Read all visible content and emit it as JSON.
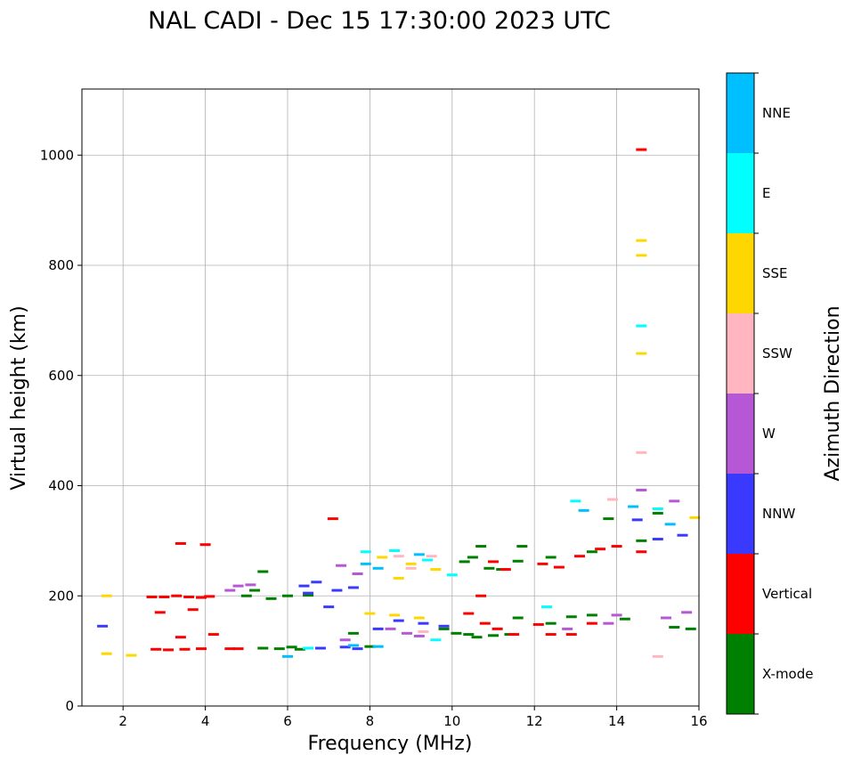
{
  "chart_data": {
    "type": "scatter",
    "title": "NAL CADI - Dec 15 17:30:00 2023 UTC",
    "xlabel": "Frequency (MHz)",
    "ylabel": "Virtual height (km)",
    "xlim": [
      1,
      16
    ],
    "ylim": [
      0,
      1120
    ],
    "xticks": [
      2,
      4,
      6,
      8,
      10,
      12,
      14,
      16
    ],
    "yticks": [
      0,
      200,
      400,
      600,
      800,
      1000
    ],
    "grid": true,
    "colorbar": {
      "label": "Azimuth Direction",
      "categories": [
        {
          "name": "X-mode",
          "color": "#008000"
        },
        {
          "name": "Vertical",
          "color": "#ff0000"
        },
        {
          "name": "NNW",
          "color": "#3a3aff"
        },
        {
          "name": "W",
          "color": "#b657d6"
        },
        {
          "name": "SSW",
          "color": "#ffb6c1"
        },
        {
          "name": "SSE",
          "color": "#ffd700"
        },
        {
          "name": "E",
          "color": "#00ffff"
        },
        {
          "name": "NNE",
          "color": "#00bfff"
        }
      ]
    },
    "series": [
      {
        "name": "X-mode",
        "points": [
          [
            5.4,
            105
          ],
          [
            5.8,
            104
          ],
          [
            6.1,
            107
          ],
          [
            6.3,
            103
          ],
          [
            7.6,
            132
          ],
          [
            8.0,
            108
          ],
          [
            9.8,
            140
          ],
          [
            10.1,
            132
          ],
          [
            10.4,
            130
          ],
          [
            10.6,
            125
          ],
          [
            11.0,
            128
          ],
          [
            11.4,
            130
          ],
          [
            11.6,
            160
          ],
          [
            12.4,
            150
          ],
          [
            12.9,
            162
          ],
          [
            13.4,
            165
          ],
          [
            14.2,
            158
          ],
          [
            15.4,
            143
          ],
          [
            15.8,
            140
          ],
          [
            10.3,
            262
          ],
          [
            10.5,
            270
          ],
          [
            10.9,
            250
          ],
          [
            11.2,
            248
          ],
          [
            11.6,
            263
          ],
          [
            12.4,
            270
          ],
          [
            13.4,
            280
          ],
          [
            14.6,
            300
          ],
          [
            5.0,
            200
          ],
          [
            5.6,
            195
          ],
          [
            6.0,
            200
          ],
          [
            6.5,
            201
          ],
          [
            5.4,
            244
          ],
          [
            5.2,
            210
          ],
          [
            11.7,
            290
          ],
          [
            15.0,
            350
          ],
          [
            13.8,
            340
          ],
          [
            10.7,
            290
          ]
        ]
      },
      {
        "name": "Vertical",
        "points": [
          [
            2.7,
            198
          ],
          [
            3.0,
            198
          ],
          [
            3.3,
            200
          ],
          [
            3.6,
            198
          ],
          [
            3.9,
            197
          ],
          [
            4.1,
            199
          ],
          [
            2.8,
            103
          ],
          [
            3.1,
            102
          ],
          [
            3.5,
            103
          ],
          [
            3.9,
            104
          ],
          [
            4.6,
            104
          ],
          [
            3.4,
            295
          ],
          [
            4.0,
            293
          ],
          [
            4.8,
            104
          ],
          [
            7.1,
            340
          ],
          [
            10.4,
            168
          ],
          [
            10.8,
            150
          ],
          [
            11.1,
            140
          ],
          [
            11.5,
            130
          ],
          [
            12.1,
            148
          ],
          [
            12.4,
            130
          ],
          [
            12.9,
            130
          ],
          [
            13.4,
            150
          ],
          [
            11.0,
            262
          ],
          [
            11.3,
            248
          ],
          [
            12.2,
            258
          ],
          [
            12.6,
            252
          ],
          [
            13.1,
            272
          ],
          [
            13.6,
            285
          ],
          [
            14.0,
            290
          ],
          [
            14.6,
            280
          ],
          [
            14.6,
            1010
          ],
          [
            10.7,
            200
          ],
          [
            2.9,
            170
          ],
          [
            3.7,
            175
          ],
          [
            3.4,
            125
          ],
          [
            4.2,
            130
          ]
        ]
      },
      {
        "name": "NNW",
        "points": [
          [
            1.5,
            145
          ],
          [
            6.4,
            218
          ],
          [
            6.7,
            225
          ],
          [
            7.2,
            210
          ],
          [
            7.4,
            107
          ],
          [
            6.8,
            105
          ],
          [
            7.7,
            104
          ],
          [
            8.2,
            140
          ],
          [
            8.7,
            155
          ],
          [
            9.3,
            150
          ],
          [
            9.8,
            145
          ],
          [
            15.0,
            303
          ],
          [
            15.6,
            310
          ],
          [
            6.5,
            205
          ],
          [
            7.0,
            180
          ],
          [
            14.5,
            338
          ],
          [
            7.6,
            215
          ]
        ]
      },
      {
        "name": "W",
        "points": [
          [
            4.6,
            210
          ],
          [
            4.8,
            218
          ],
          [
            5.1,
            220
          ],
          [
            7.3,
            255
          ],
          [
            7.7,
            240
          ],
          [
            8.5,
            140
          ],
          [
            8.9,
            132
          ],
          [
            9.2,
            127
          ],
          [
            14.6,
            392
          ],
          [
            15.2,
            160
          ],
          [
            15.7,
            170
          ],
          [
            15.4,
            372
          ],
          [
            12.8,
            140
          ],
          [
            13.8,
            150
          ],
          [
            14.0,
            165
          ],
          [
            7.4,
            120
          ]
        ]
      },
      {
        "name": "SSW",
        "points": [
          [
            8.7,
            272
          ],
          [
            9.0,
            250
          ],
          [
            9.5,
            272
          ],
          [
            13.9,
            375
          ],
          [
            14.6,
            460
          ],
          [
            15.0,
            90
          ],
          [
            9.3,
            135
          ]
        ]
      },
      {
        "name": "SSE",
        "points": [
          [
            8.3,
            270
          ],
          [
            8.7,
            232
          ],
          [
            9.0,
            258
          ],
          [
            9.6,
            248
          ],
          [
            8.0,
            168
          ],
          [
            8.6,
            165
          ],
          [
            14.6,
            845
          ],
          [
            14.6,
            818
          ],
          [
            14.6,
            640
          ],
          [
            1.6,
            200
          ],
          [
            1.6,
            95
          ],
          [
            15.9,
            342
          ],
          [
            9.2,
            160
          ],
          [
            2.2,
            92
          ]
        ]
      },
      {
        "name": "E",
        "points": [
          [
            7.9,
            280
          ],
          [
            8.6,
            282
          ],
          [
            9.4,
            265
          ],
          [
            9.6,
            120
          ],
          [
            13.0,
            372
          ],
          [
            14.6,
            690
          ],
          [
            15.0,
            358
          ],
          [
            6.5,
            105
          ],
          [
            10.0,
            238
          ],
          [
            12.3,
            180
          ]
        ]
      },
      {
        "name": "NNE",
        "points": [
          [
            7.9,
            258
          ],
          [
            8.2,
            250
          ],
          [
            7.6,
            110
          ],
          [
            8.2,
            108
          ],
          [
            9.2,
            275
          ],
          [
            13.2,
            355
          ],
          [
            14.4,
            362
          ],
          [
            15.3,
            330
          ],
          [
            6.0,
            90
          ]
        ]
      }
    ]
  }
}
